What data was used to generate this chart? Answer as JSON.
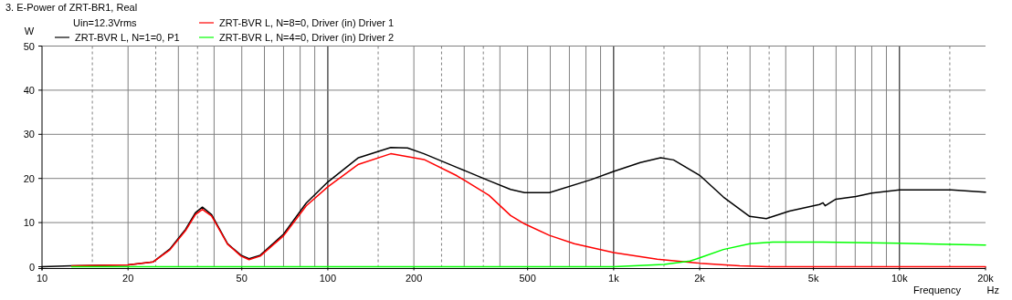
{
  "chart_data": {
    "type": "line",
    "title": "3. E-Power of ZRT-BR1, Real",
    "xlabel": "Frequency",
    "ylabel": "W",
    "annotations": [
      "Uin=12.3Vrms",
      "Hz"
    ],
    "log": "x",
    "grid": true,
    "legend": "top left",
    "line_style": "solid",
    "marker": "none",
    "xlim": [
      10,
      20000
    ],
    "ylim": [
      0,
      50
    ],
    "yticks": [
      0,
      10,
      20,
      30,
      40,
      50
    ],
    "xticks": [
      10,
      {
        "value": 15,
        "label": null
      },
      20,
      {
        "value": 25,
        "label": null
      },
      {
        "value": 30,
        "label": null
      },
      {
        "value": 35,
        "label": null
      },
      {
        "value": 40,
        "label": null
      },
      50,
      {
        "value": 60,
        "label": null
      },
      {
        "value": 70,
        "label": null
      },
      {
        "value": 80,
        "label": null
      },
      {
        "value": 90,
        "label": null
      },
      100,
      {
        "value": 150,
        "label": null
      },
      200,
      {
        "value": 250,
        "label": null
      },
      {
        "value": 300,
        "label": null
      },
      {
        "value": 350,
        "label": null
      },
      {
        "value": 400,
        "label": null
      },
      500,
      {
        "value": 600,
        "label": null
      },
      {
        "value": 700,
        "label": null
      },
      {
        "value": 800,
        "label": null
      },
      {
        "value": 900,
        "label": null
      },
      {
        "value": 1000,
        "label": "1k"
      },
      {
        "value": 1500,
        "label": null
      },
      {
        "value": 2000,
        "label": "2k"
      },
      {
        "value": 2500,
        "label": null
      },
      {
        "value": 3000,
        "label": null
      },
      {
        "value": 3500,
        "label": null
      },
      {
        "value": 4000,
        "label": null
      },
      {
        "value": 5000,
        "label": "5k"
      },
      {
        "value": 6000,
        "label": null
      },
      {
        "value": 7000,
        "label": null
      },
      {
        "value": 8000,
        "label": null
      },
      {
        "value": 9000,
        "label": null
      },
      {
        "value": 10000,
        "label": "10k"
      },
      {
        "value": 15000,
        "label": null
      },
      {
        "value": 20000,
        "label": "20k"
      }
    ],
    "series": [
      {
        "name": "ZRT-BVR L, N=1=0, P1",
        "color": "#000000",
        "x": [
          10,
          12.7,
          20,
          24.5,
          28,
          31.8,
          34.4,
          36.4,
          39.2,
          44.6,
          49.7,
          53,
          58,
          70,
          84,
          100,
          128,
          166,
          190,
          217,
          283,
          366,
          436,
          488,
          596,
          832,
          1000,
          1240,
          1460,
          1620,
          2000,
          2420,
          2990,
          3420,
          4120,
          5250,
          5400,
          5500,
          5990,
          7040,
          8000,
          10000,
          15200,
          20000
        ],
        "values": [
          0,
          0.2,
          0.4,
          1.1,
          4,
          8.5,
          12.2,
          13.5,
          11.8,
          5.2,
          2.6,
          1.8,
          2.6,
          7.4,
          14.4,
          19.2,
          24.7,
          27,
          26.9,
          25.6,
          22.5,
          19.5,
          17.5,
          16.8,
          16.8,
          19.7,
          21.6,
          23.6,
          24.7,
          24.2,
          20.7,
          15.8,
          11.4,
          10.9,
          12.6,
          14.1,
          14.5,
          13.8,
          15.3,
          15.9,
          16.7,
          17.4,
          17.4,
          16.9
        ]
      },
      {
        "name": "ZRT-BVR L, N=8=0, Driver (in) Driver 1",
        "color": "#ff0000",
        "x": [
          12.7,
          20,
          24.5,
          28,
          31.8,
          34.4,
          36.4,
          39.2,
          44.6,
          49.7,
          53,
          58,
          70,
          84,
          100,
          128,
          166,
          217,
          283,
          366,
          436,
          488,
          596,
          728,
          1000,
          1420,
          2000,
          2760,
          3500,
          20000
        ],
        "values": [
          0.2,
          0.4,
          1.1,
          3.8,
          8.2,
          11.8,
          13,
          11.5,
          5.1,
          2.4,
          1.6,
          2.4,
          7,
          13.8,
          18.1,
          23.2,
          25.6,
          24.3,
          20.6,
          16.2,
          11.6,
          9.7,
          7.1,
          5.2,
          3.2,
          1.7,
          0.8,
          0.2,
          0,
          0
        ]
      },
      {
        "name": "ZRT-BVR L, N=4=0, Driver (in) Driver 2",
        "color": "#00ff00",
        "x": [
          12.7,
          1000,
          1500,
          1850,
          2000,
          2420,
          3000,
          3600,
          5400,
          10000,
          20000
        ],
        "values": [
          0,
          0,
          0.5,
          1.3,
          2,
          3.9,
          5.2,
          5.6,
          5.6,
          5.3,
          4.9
        ]
      }
    ]
  }
}
